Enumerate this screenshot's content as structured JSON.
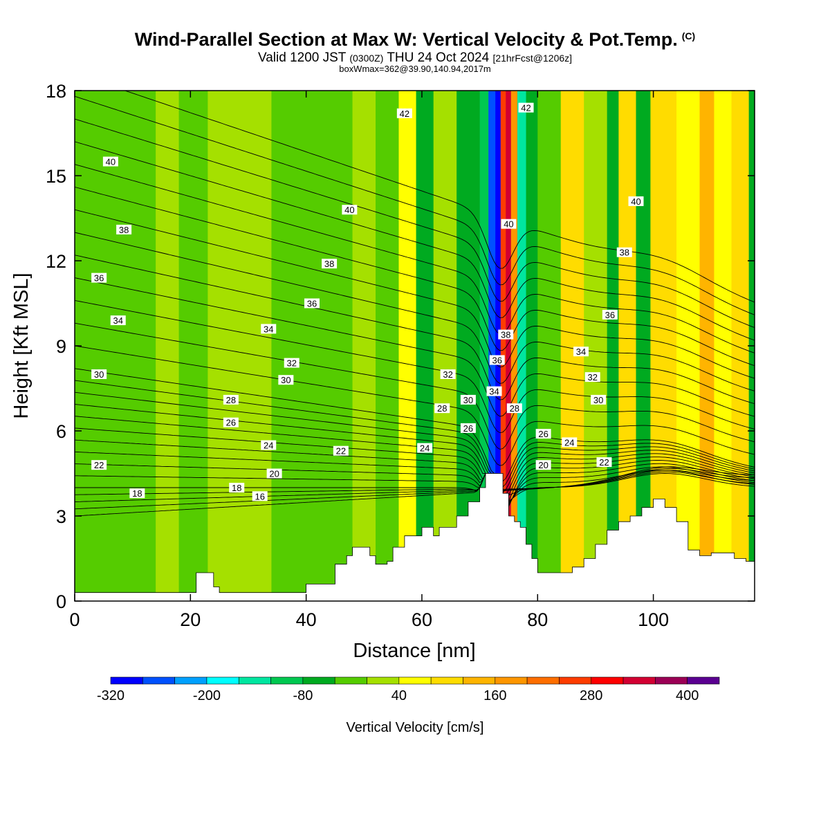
{
  "header": {
    "title": "Wind-Parallel Section at Max W: Vertical Velocity & Pot.Temp.",
    "copyright": "(C)",
    "subtitle_pre": "Valid 1200 JST",
    "subtitle_z": "(0300Z)",
    "subtitle_date": "THU 24 Oct 2024",
    "subtitle_fcst": "[21hrFcst@1206z]",
    "subtitle2": "boxWmax=362@39.90,140.94,2017m"
  },
  "chart_data": {
    "type": "heatmap",
    "xlabel": "Distance [nm]",
    "ylabel": "Height [Kft MSL]",
    "xlim": [
      0,
      117.5
    ],
    "ylim": [
      0,
      18
    ],
    "x_ticks": [
      0,
      20,
      40,
      60,
      80,
      100
    ],
    "y_ticks": [
      0,
      3,
      6,
      9,
      12,
      15,
      18
    ],
    "colorbar": {
      "label": "Vertical Velocity [cm/s]",
      "tick_values": [
        -320,
        -200,
        -80,
        40,
        160,
        280,
        400
      ],
      "levels": [
        -320,
        -280,
        -240,
        -200,
        -160,
        -120,
        -80,
        -40,
        0,
        40,
        80,
        120,
        160,
        200,
        240,
        280,
        320,
        360,
        400,
        440
      ],
      "colors": [
        "#0000ff",
        "#0050ff",
        "#00a0ff",
        "#00ffff",
        "#00e6a0",
        "#00c850",
        "#00aa20",
        "#55cc00",
        "#a5e000",
        "#ffff00",
        "#ffdc00",
        "#ffb400",
        "#ff9600",
        "#ff6e00",
        "#ff3c00",
        "#ff0000",
        "#d20032",
        "#9b0055",
        "#5a0091"
      ]
    },
    "vertical_velocity_columns": [
      {
        "x0": 0,
        "x1": 14,
        "value": -30
      },
      {
        "x0": 14,
        "x1": 18,
        "value": 15
      },
      {
        "x0": 18,
        "x1": 23,
        "value": -20
      },
      {
        "x0": 23,
        "x1": 30,
        "value": 20
      },
      {
        "x0": 30,
        "x1": 34,
        "value": 5
      },
      {
        "x0": 34,
        "x1": 48,
        "value": -25
      },
      {
        "x0": 48,
        "x1": 52,
        "value": 10
      },
      {
        "x0": 52,
        "x1": 56,
        "value": -35
      },
      {
        "x0": 56,
        "x1": 59,
        "value": 60
      },
      {
        "x0": 59,
        "x1": 62,
        "value": -60
      },
      {
        "x0": 62,
        "x1": 66,
        "value": 15
      },
      {
        "x0": 66,
        "x1": 70,
        "value": -45
      },
      {
        "x0": 70,
        "x1": 71.5,
        "value": -120
      },
      {
        "x0": 71.5,
        "x1": 72.7,
        "value": -250
      },
      {
        "x0": 72.7,
        "x1": 73.6,
        "value": -310
      },
      {
        "x0": 73.6,
        "x1": 74.5,
        "value": 260
      },
      {
        "x0": 74.5,
        "x1": 75.4,
        "value": 350
      },
      {
        "x0": 75.4,
        "x1": 76.5,
        "value": 190
      },
      {
        "x0": 76.5,
        "x1": 78,
        "value": -140
      },
      {
        "x0": 78,
        "x1": 80,
        "value": -60
      },
      {
        "x0": 80,
        "x1": 84,
        "value": -30
      },
      {
        "x0": 84,
        "x1": 88,
        "value": 100
      },
      {
        "x0": 88,
        "x1": 92,
        "value": 30
      },
      {
        "x0": 92,
        "x1": 94,
        "value": -60
      },
      {
        "x0": 94,
        "x1": 97,
        "value": 90
      },
      {
        "x0": 97,
        "x1": 99.5,
        "value": -60
      },
      {
        "x0": 99.5,
        "x1": 104,
        "value": 110
      },
      {
        "x0": 104,
        "x1": 108,
        "value": 70
      },
      {
        "x0": 108,
        "x1": 110.5,
        "value": 140
      },
      {
        "x0": 110.5,
        "x1": 113.5,
        "value": 60
      },
      {
        "x0": 113.5,
        "x1": 116.5,
        "value": 100
      },
      {
        "x0": 116.5,
        "x1": 117.5,
        "value": -60
      }
    ],
    "terrain": {
      "x": [
        0,
        20,
        21,
        23,
        24,
        25,
        38,
        40,
        45,
        47,
        48,
        51,
        52,
        54,
        55,
        57,
        60,
        62,
        63,
        66,
        68,
        70,
        71,
        73,
        74,
        75,
        76,
        77,
        78,
        79,
        80,
        84,
        86,
        88,
        90,
        92,
        94,
        96,
        98,
        100,
        102,
        104,
        106,
        108,
        110,
        112,
        114,
        116,
        117.5
      ],
      "height": [
        0.3,
        0.3,
        1.0,
        1.0,
        0.5,
        0.3,
        0.3,
        0.6,
        1.3,
        1.6,
        1.9,
        1.6,
        1.3,
        1.4,
        1.9,
        2.3,
        2.6,
        2.3,
        2.6,
        3.0,
        3.5,
        4.0,
        4.5,
        4.5,
        3.8,
        3.0,
        2.8,
        2.6,
        2.0,
        1.5,
        1.0,
        1.0,
        1.2,
        1.5,
        2.0,
        2.5,
        2.8,
        3.0,
        3.3,
        3.6,
        3.3,
        2.8,
        1.8,
        1.6,
        1.7,
        1.7,
        1.5,
        1.4,
        1.3
      ]
    },
    "theta_contour_labels": [
      {
        "value": "40",
        "x": 6.2,
        "y": 15.5
      },
      {
        "value": "38",
        "x": 8.5,
        "y": 13.1
      },
      {
        "value": "36",
        "x": 4.2,
        "y": 11.4
      },
      {
        "value": "34",
        "x": 7.5,
        "y": 9.9
      },
      {
        "value": "30",
        "x": 4.2,
        "y": 8.0
      },
      {
        "value": "22",
        "x": 4.2,
        "y": 4.8
      },
      {
        "value": "18",
        "x": 10.8,
        "y": 3.8
      },
      {
        "value": "28",
        "x": 27.0,
        "y": 7.1
      },
      {
        "value": "26",
        "x": 27.0,
        "y": 6.3
      },
      {
        "value": "24",
        "x": 33.5,
        "y": 5.5
      },
      {
        "value": "18",
        "x": 28.0,
        "y": 4.0
      },
      {
        "value": "16",
        "x": 32.0,
        "y": 3.7
      },
      {
        "value": "20",
        "x": 34.5,
        "y": 4.5
      },
      {
        "value": "22",
        "x": 46.0,
        "y": 5.3
      },
      {
        "value": "34",
        "x": 33.5,
        "y": 9.6
      },
      {
        "value": "32",
        "x": 37.5,
        "y": 8.4
      },
      {
        "value": "30",
        "x": 36.5,
        "y": 7.8
      },
      {
        "value": "36",
        "x": 41.0,
        "y": 10.5
      },
      {
        "value": "38",
        "x": 44.0,
        "y": 11.9
      },
      {
        "value": "40",
        "x": 47.5,
        "y": 13.8
      },
      {
        "value": "42",
        "x": 57.0,
        "y": 17.2
      },
      {
        "value": "32",
        "x": 64.5,
        "y": 8.0
      },
      {
        "value": "28",
        "x": 63.5,
        "y": 6.8
      },
      {
        "value": "30",
        "x": 68.0,
        "y": 7.1
      },
      {
        "value": "26",
        "x": 68.0,
        "y": 6.1
      },
      {
        "value": "24",
        "x": 60.5,
        "y": 5.4
      },
      {
        "value": "38",
        "x": 74.5,
        "y": 9.4
      },
      {
        "value": "36",
        "x": 73.0,
        "y": 8.5
      },
      {
        "value": "34",
        "x": 72.5,
        "y": 7.4
      },
      {
        "value": "28",
        "x": 76.0,
        "y": 6.8
      },
      {
        "value": "40",
        "x": 75.0,
        "y": 13.3
      },
      {
        "value": "42",
        "x": 78.0,
        "y": 17.4
      },
      {
        "value": "26",
        "x": 81.0,
        "y": 5.9
      },
      {
        "value": "24",
        "x": 85.5,
        "y": 5.6
      },
      {
        "value": "20",
        "x": 81.0,
        "y": 4.8
      },
      {
        "value": "22",
        "x": 91.5,
        "y": 4.9
      },
      {
        "value": "30",
        "x": 90.5,
        "y": 7.1
      },
      {
        "value": "32",
        "x": 89.5,
        "y": 7.9
      },
      {
        "value": "34",
        "x": 87.5,
        "y": 8.8
      },
      {
        "value": "36",
        "x": 92.5,
        "y": 10.1
      },
      {
        "value": "38",
        "x": 95.0,
        "y": 12.3
      },
      {
        "value": "40",
        "x": 97.0,
        "y": 14.1
      }
    ]
  }
}
